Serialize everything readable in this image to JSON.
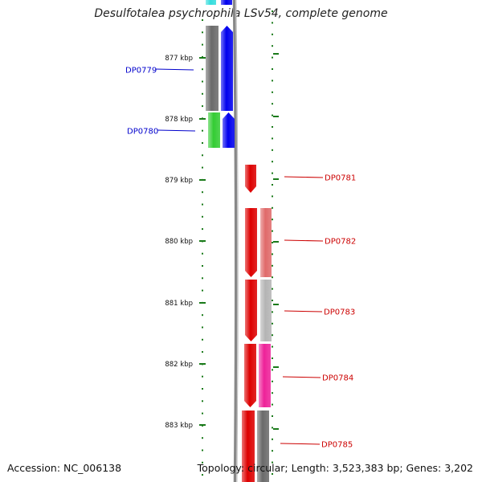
{
  "title": "Desulfotalea psychrophila LSv54, complete genome",
  "accession_text": "Accession: NC_006138",
  "topology_text": "Topology: circular; Length: 3,523,383 bp; Genes: 3,202",
  "kbp_labels": [
    "877 kbp",
    "878 kbp",
    "879 kbp",
    "880 kbp",
    "881 kbp",
    "882 kbp",
    "883 kbp"
  ],
  "genes": [
    {
      "id": "DP0779",
      "strand": "reverse",
      "color": "#0000ee"
    },
    {
      "id": "DP0780",
      "strand": "reverse",
      "color": "#0000ee"
    },
    {
      "id": "DP0781",
      "strand": "forward",
      "color": "#dd0000"
    },
    {
      "id": "DP0782",
      "strand": "forward",
      "color": "#dd0000"
    },
    {
      "id": "DP0783",
      "strand": "forward",
      "color": "#dd0000"
    },
    {
      "id": "DP0784",
      "strand": "forward",
      "color": "#dd0000"
    },
    {
      "id": "DP0785",
      "strand": "forward",
      "color": "#dd0000"
    }
  ],
  "colors": {
    "reverse_label": "#0000cc",
    "forward_label": "#cc0000",
    "tick": "#1a7a1a",
    "backbone": "#888888",
    "cog_gray": "#6a6a6a",
    "cog_green": "#33cc33",
    "cog_salmon": "#e06a6a",
    "cog_silver": "#b4b4b4",
    "cog_magenta": "#ee2299",
    "cog_cyan": "#33dddd"
  }
}
